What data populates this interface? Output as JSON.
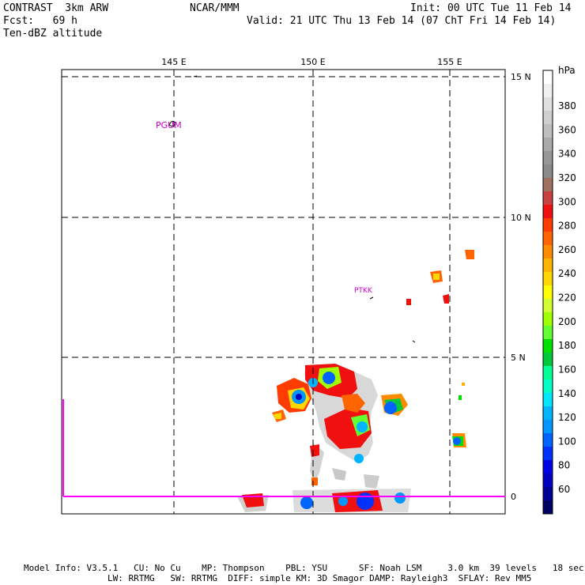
{
  "header": {
    "model": "CONTRAST  3km ARW",
    "org": "NCAR/MMM",
    "init": "Init: 00 UTC Tue 11 Feb 14",
    "fcst": "Fcst:   69 h",
    "valid": "Valid: 21 UTC Thu 13 Feb 14 (07 ChT Fri 14 Feb 14)",
    "field": "Ten-dBZ altitude"
  },
  "map": {
    "lon_labels": [
      "145 E",
      "150 E",
      "155 E"
    ],
    "lat_labels": [
      "15 N",
      "10 N",
      "5 N",
      "0"
    ],
    "stations": [
      "PGUM",
      "PTKK"
    ],
    "boundary_color": "#ff00ff"
  },
  "colorbar": {
    "unit": "hPa",
    "labels": [
      "380",
      "360",
      "340",
      "320",
      "300",
      "280",
      "260",
      "240",
      "220",
      "200",
      "180",
      "160",
      "140",
      "120",
      "100",
      "80",
      "60"
    ],
    "colors": [
      "#ffffff",
      "#f0f0f0",
      "#e0e0e0",
      "#cfcfcf",
      "#bebebe",
      "#aaaaaa",
      "#969696",
      "#8a8a8a",
      "#a07060",
      "#c84040",
      "#f01010",
      "#ff3c00",
      "#ff6400",
      "#ff8c00",
      "#ffb400",
      "#ffd700",
      "#ffff00",
      "#d2ff32",
      "#a0ff00",
      "#64ff32",
      "#00e000",
      "#00c83c",
      "#00ff96",
      "#00ffc8",
      "#00e6ff",
      "#00b4ff",
      "#0096ff",
      "#0064ff",
      "#0032ff",
      "#0000e6",
      "#0000c0",
      "#000096",
      "#000064"
    ]
  },
  "footer": {
    "line1": "Model Info: V3.5.1   CU: No Cu    MP: Thompson    PBL: YSU      SF: Noah LSM     3.0 km  39 levels   18 sec",
    "line2": "                LW: RRTMG   SW: RRTMG  DIFF: simple KM: 3D Smagor DAMP: Rayleigh3  SFLAY: Rev MM5"
  }
}
